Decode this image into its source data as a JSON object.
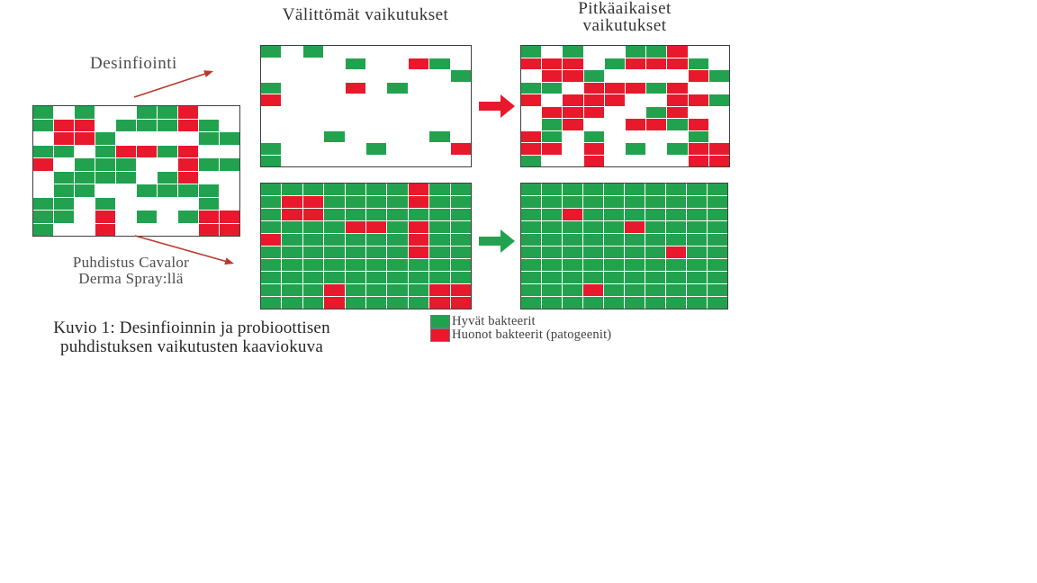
{
  "figure": {
    "caption_line1": "Kuvio 1: Desinfioinnin ja probioottisen",
    "caption_line2": "puhdistuksen vaikutusten kaaviokuva"
  },
  "columns": {
    "immediate_title": "Välittömät vaikutukset",
    "longterm_title_line1": "Pitkäaikaiset",
    "longterm_title_line2": "vaikutukset"
  },
  "treatments": {
    "disinfection_label": "Desinfiointi",
    "probiotic_label_line1": "Puhdistus Cavalor",
    "probiotic_label_line2": "Derma Spray:llä"
  },
  "legend": {
    "items": [
      {
        "label": "Hyvät bakteerit",
        "color": "#22a24e"
      },
      {
        "label": "Huonot bakteerit (patogeenit)",
        "color": "#e8192c"
      }
    ]
  },
  "colors": {
    "good_bacteria": "#22a24e",
    "bad_bacteria": "#e8192c",
    "empty": "#ffffff",
    "grid_line": "#3f3f3f",
    "block_arrow_red": "#e8192c",
    "block_arrow_green": "#22a24e",
    "annotation_arrow": "#b8392e",
    "cell_map": {
      "G": "#22a24e",
      "R": "#e8192c",
      "W": "#ffffff"
    }
  },
  "grids": {
    "initial": {
      "rows": [
        "GWGWWGGRWW",
        "GRRWGGGRGW",
        "WRRGWWWWGG",
        "GGWGRRGRWW",
        "RWGGGWWRGG",
        "WGGGGWGRWW",
        "WGGWWGGGGW",
        "GGWGWWWWGW",
        "GGWRWGWGRR",
        "GWWRWWWWRR"
      ]
    },
    "immediate_disinfection": {
      "rows": [
        "GWGWWWWWWW",
        "WWWWGWWRGW",
        "WWWWWWWWWG",
        "GWWWRWGWWW",
        "RWWWWWWWWW",
        "WWWWWWWWWW",
        "WWWWWWWWWW",
        "WWWGWWWWGW",
        "GWWWWGWWWR",
        "GWWWWWWWWW"
      ]
    },
    "longterm_disinfection": {
      "rows": [
        "GWGWWGGRWW",
        "RRRWGRRRGW",
        "WRRGWWWWRG",
        "GGWRRRGRWW",
        "RWRRRWWRRG",
        "WRRRWWGRWW",
        "WGRWWRRGRW",
        "RGWGWWWWGW",
        "RRWRWGWGRR",
        "GWWRWWWWRR"
      ]
    },
    "immediate_probiotic": {
      "rows": [
        "GGGGGGGRGG",
        "GRRGGGGRGG",
        "GRRGGGGGGG",
        "GGGGRRGRGG",
        "RGGGGGGRGG",
        "GGGGGGGRGG",
        "GGGGGGGGGG",
        "GGGGGGGGGG",
        "GGGRGGGGRR",
        "GGGRGGGGRR"
      ]
    },
    "longterm_probiotic": {
      "rows": [
        "GGGGGGGGGG",
        "GGGGGGGGGG",
        "GGRGGGGGGG",
        "GGGGGRGGGG",
        "GGGGGGGGGG",
        "GGGGGGGRGG",
        "GGGGGGGGGG",
        "GGGGGGGGGG",
        "GGGRGGGGGG",
        "GGGGGGGGGG"
      ]
    }
  }
}
